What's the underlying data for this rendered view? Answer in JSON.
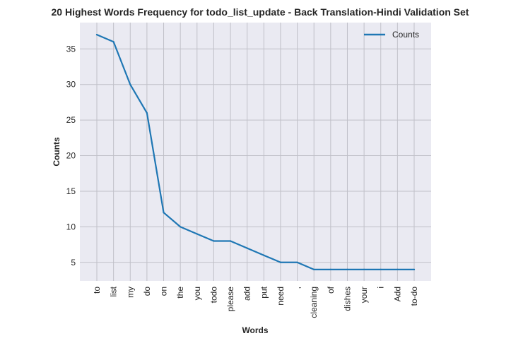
{
  "chart_data": {
    "type": "line",
    "title": "20 Highest Words Frequency for todo_list_update - Back Translation-Hindi Validation Set",
    "xlabel": "Words",
    "ylabel": "Counts",
    "categories": [
      "to",
      "list",
      "my",
      "do",
      "on",
      "the",
      "you",
      "todo",
      "please",
      "add",
      "put",
      "need",
      ",",
      "cleaning",
      "of",
      "dishes",
      "your",
      "i",
      "Add",
      "to-do"
    ],
    "series": [
      {
        "name": "Counts",
        "values": [
          37,
          36,
          30,
          26,
          12,
          10,
          9,
          8,
          8,
          7,
          6,
          5,
          5,
          4,
          4,
          4,
          4,
          4,
          4,
          4
        ],
        "color": "#1f77b4"
      }
    ],
    "ylim": [
      2.4,
      38.7
    ],
    "yticks": [
      5,
      10,
      15,
      20,
      25,
      30,
      35
    ],
    "grid": true,
    "legend_position": "top-right",
    "style": {
      "plot_background": "#eaeaf2",
      "grid_color": "#c0c0c8"
    }
  }
}
